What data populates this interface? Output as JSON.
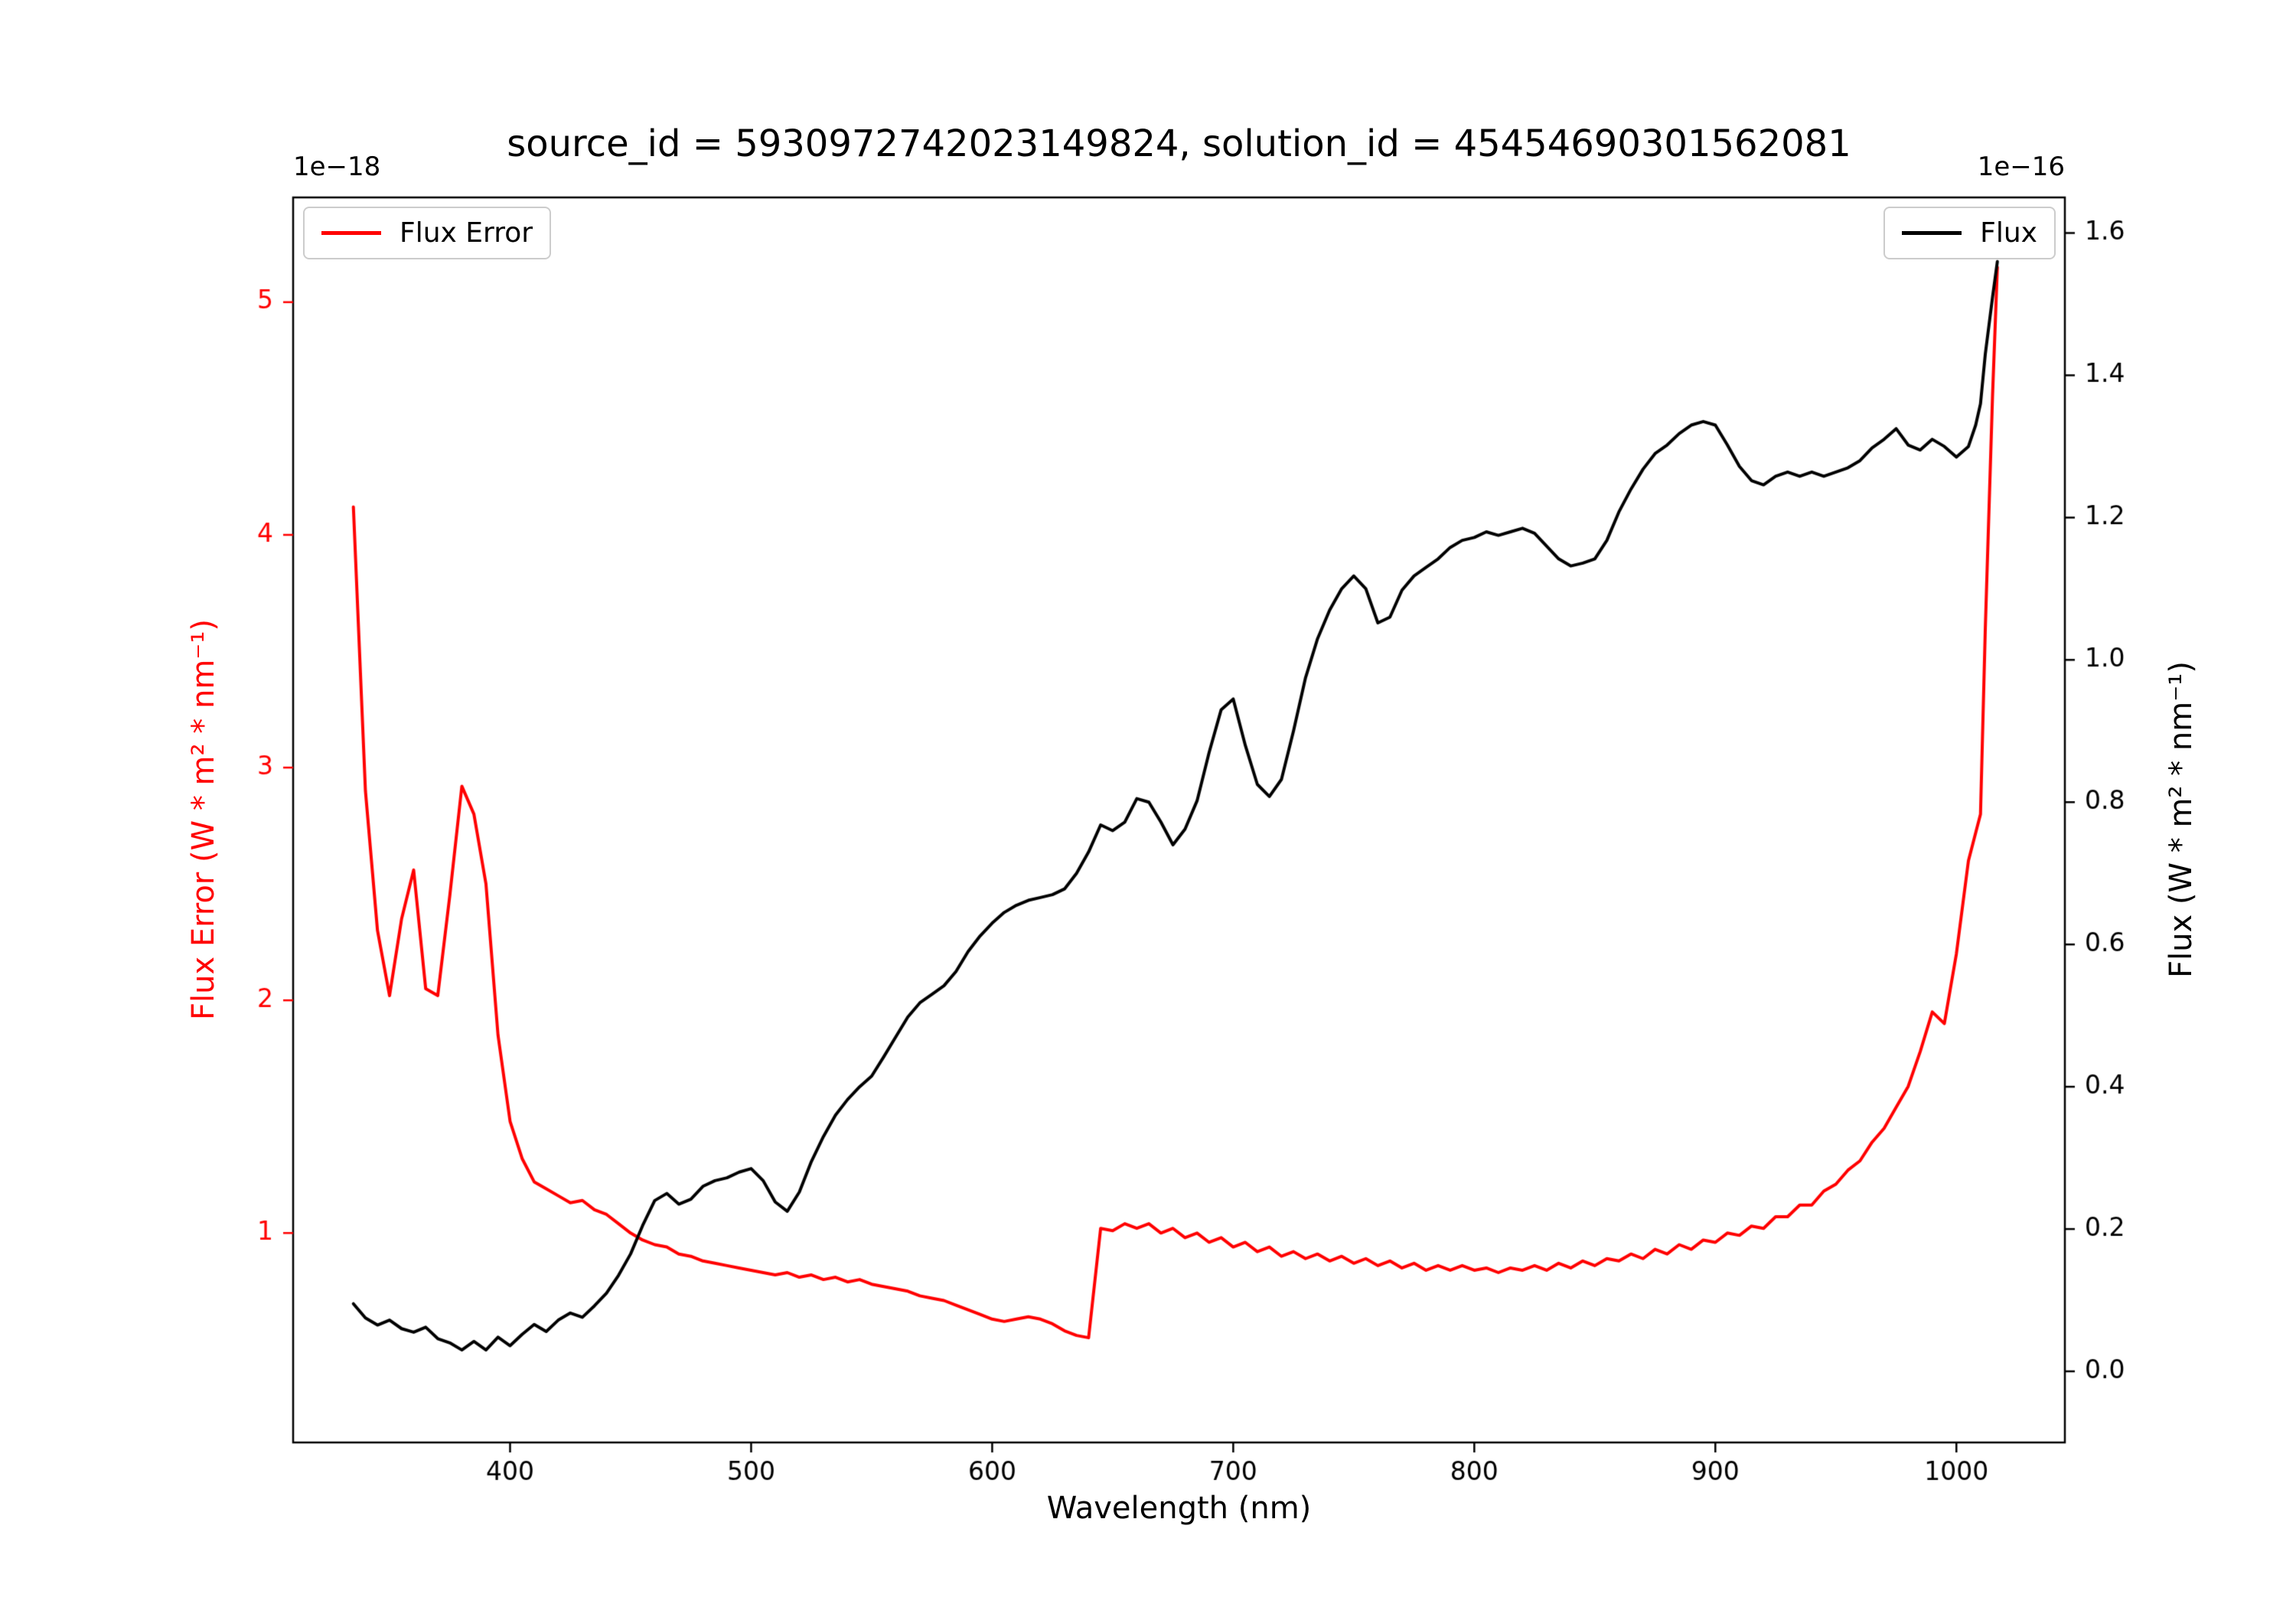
{
  "chart_data": {
    "type": "line",
    "title": "source_id = 5930972742023149824, solution_id = 45454690301562081",
    "xlabel": "Wavelength (nm)",
    "grid": false,
    "x_axis": {
      "lim": [
        310,
        1045
      ],
      "tick_labels": [
        "400",
        "500",
        "600",
        "700",
        "800",
        "900",
        "1000"
      ]
    },
    "left_axis": {
      "label": "Flux Error (W * m² * nm⁻¹)",
      "offset_text": "1e−18",
      "color": "#ff0000",
      "lim": [
        0.1,
        5.45
      ],
      "tick_labels": [
        "1",
        "2",
        "3",
        "4",
        "5"
      ]
    },
    "right_axis": {
      "label": "Flux (W * m² * nm⁻¹)",
      "offset_text": "1e−16",
      "color": "#000000",
      "lim": [
        -0.1,
        1.65
      ],
      "tick_labels": [
        "0.0",
        "0.2",
        "0.4",
        "0.6",
        "0.8",
        "1.0",
        "1.2",
        "1.4",
        "1.6"
      ]
    },
    "legends": [
      {
        "label": "Flux Error",
        "color": "#ff0000",
        "position": "upper-left"
      },
      {
        "label": "Flux",
        "color": "#000000",
        "position": "upper-right"
      }
    ],
    "x": [
      335,
      340,
      345,
      350,
      355,
      360,
      365,
      370,
      375,
      380,
      385,
      390,
      395,
      400,
      405,
      410,
      415,
      420,
      425,
      430,
      435,
      440,
      445,
      450,
      455,
      460,
      465,
      470,
      475,
      480,
      485,
      490,
      495,
      500,
      505,
      510,
      515,
      520,
      525,
      530,
      535,
      540,
      545,
      550,
      555,
      560,
      565,
      570,
      575,
      580,
      585,
      590,
      595,
      600,
      605,
      610,
      615,
      620,
      625,
      630,
      635,
      640,
      645,
      650,
      655,
      660,
      665,
      670,
      675,
      680,
      685,
      690,
      695,
      700,
      705,
      710,
      715,
      720,
      725,
      730,
      735,
      740,
      745,
      750,
      755,
      760,
      765,
      770,
      775,
      780,
      785,
      790,
      795,
      800,
      805,
      810,
      815,
      820,
      825,
      830,
      835,
      840,
      845,
      850,
      855,
      860,
      865,
      870,
      875,
      880,
      885,
      890,
      895,
      900,
      905,
      910,
      915,
      920,
      925,
      930,
      935,
      940,
      945,
      950,
      955,
      960,
      965,
      970,
      975,
      980,
      985,
      990,
      995,
      1000,
      1005,
      1008,
      1010,
      1012,
      1015,
      1017
    ],
    "series": [
      {
        "name": "Flux Error",
        "axis": "left",
        "color": "#ff0000",
        "scale": "1e-18",
        "values": [
          4.12,
          2.9,
          2.3,
          2.02,
          2.35,
          2.56,
          2.05,
          2.02,
          2.45,
          2.92,
          2.8,
          2.5,
          1.85,
          1.48,
          1.32,
          1.22,
          1.19,
          1.16,
          1.13,
          1.14,
          1.1,
          1.08,
          1.04,
          1.0,
          0.97,
          0.95,
          0.94,
          0.91,
          0.9,
          0.88,
          0.87,
          0.86,
          0.85,
          0.84,
          0.83,
          0.82,
          0.83,
          0.81,
          0.82,
          0.8,
          0.81,
          0.79,
          0.8,
          0.78,
          0.77,
          0.76,
          0.75,
          0.73,
          0.72,
          0.71,
          0.69,
          0.67,
          0.65,
          0.63,
          0.62,
          0.63,
          0.64,
          0.63,
          0.61,
          0.58,
          0.56,
          0.55,
          1.02,
          1.01,
          1.04,
          1.02,
          1.04,
          1.0,
          1.02,
          0.98,
          1.0,
          0.96,
          0.98,
          0.94,
          0.96,
          0.92,
          0.94,
          0.9,
          0.92,
          0.89,
          0.91,
          0.88,
          0.9,
          0.87,
          0.89,
          0.86,
          0.88,
          0.85,
          0.87,
          0.84,
          0.86,
          0.84,
          0.86,
          0.84,
          0.85,
          0.83,
          0.85,
          0.84,
          0.86,
          0.84,
          0.87,
          0.85,
          0.88,
          0.86,
          0.89,
          0.88,
          0.91,
          0.89,
          0.93,
          0.91,
          0.95,
          0.93,
          0.97,
          0.96,
          1.0,
          0.99,
          1.03,
          1.02,
          1.07,
          1.07,
          1.12,
          1.12,
          1.18,
          1.21,
          1.27,
          1.31,
          1.39,
          1.45,
          1.54,
          1.63,
          1.78,
          1.95,
          1.9,
          2.2,
          2.6,
          2.72,
          2.8,
          3.6,
          4.6,
          5.15
        ]
      },
      {
        "name": "Flux",
        "axis": "right",
        "color": "#000000",
        "scale": "1e-16",
        "values": [
          0.095,
          0.075,
          0.065,
          0.072,
          0.06,
          0.055,
          0.062,
          0.046,
          0.04,
          0.03,
          0.042,
          0.03,
          0.048,
          0.036,
          0.052,
          0.066,
          0.056,
          0.072,
          0.082,
          0.076,
          0.092,
          0.11,
          0.135,
          0.165,
          0.205,
          0.24,
          0.25,
          0.235,
          0.242,
          0.26,
          0.268,
          0.272,
          0.28,
          0.285,
          0.268,
          0.238,
          0.225,
          0.252,
          0.295,
          0.33,
          0.36,
          0.382,
          0.4,
          0.415,
          0.442,
          0.47,
          0.498,
          0.518,
          0.53,
          0.542,
          0.562,
          0.59,
          0.612,
          0.63,
          0.645,
          0.655,
          0.662,
          0.666,
          0.67,
          0.678,
          0.7,
          0.73,
          0.768,
          0.76,
          0.772,
          0.805,
          0.8,
          0.772,
          0.74,
          0.762,
          0.802,
          0.87,
          0.93,
          0.945,
          0.88,
          0.825,
          0.808,
          0.832,
          0.9,
          0.975,
          1.03,
          1.07,
          1.1,
          1.118,
          1.1,
          1.052,
          1.06,
          1.098,
          1.118,
          1.13,
          1.142,
          1.158,
          1.168,
          1.172,
          1.18,
          1.175,
          1.18,
          1.185,
          1.178,
          1.16,
          1.142,
          1.132,
          1.136,
          1.142,
          1.168,
          1.208,
          1.24,
          1.268,
          1.29,
          1.302,
          1.318,
          1.33,
          1.335,
          1.33,
          1.302,
          1.272,
          1.252,
          1.246,
          1.258,
          1.264,
          1.258,
          1.264,
          1.258,
          1.264,
          1.27,
          1.28,
          1.298,
          1.31,
          1.325,
          1.302,
          1.295,
          1.31,
          1.3,
          1.285,
          1.3,
          1.33,
          1.36,
          1.43,
          1.51,
          1.56
        ]
      }
    ]
  }
}
